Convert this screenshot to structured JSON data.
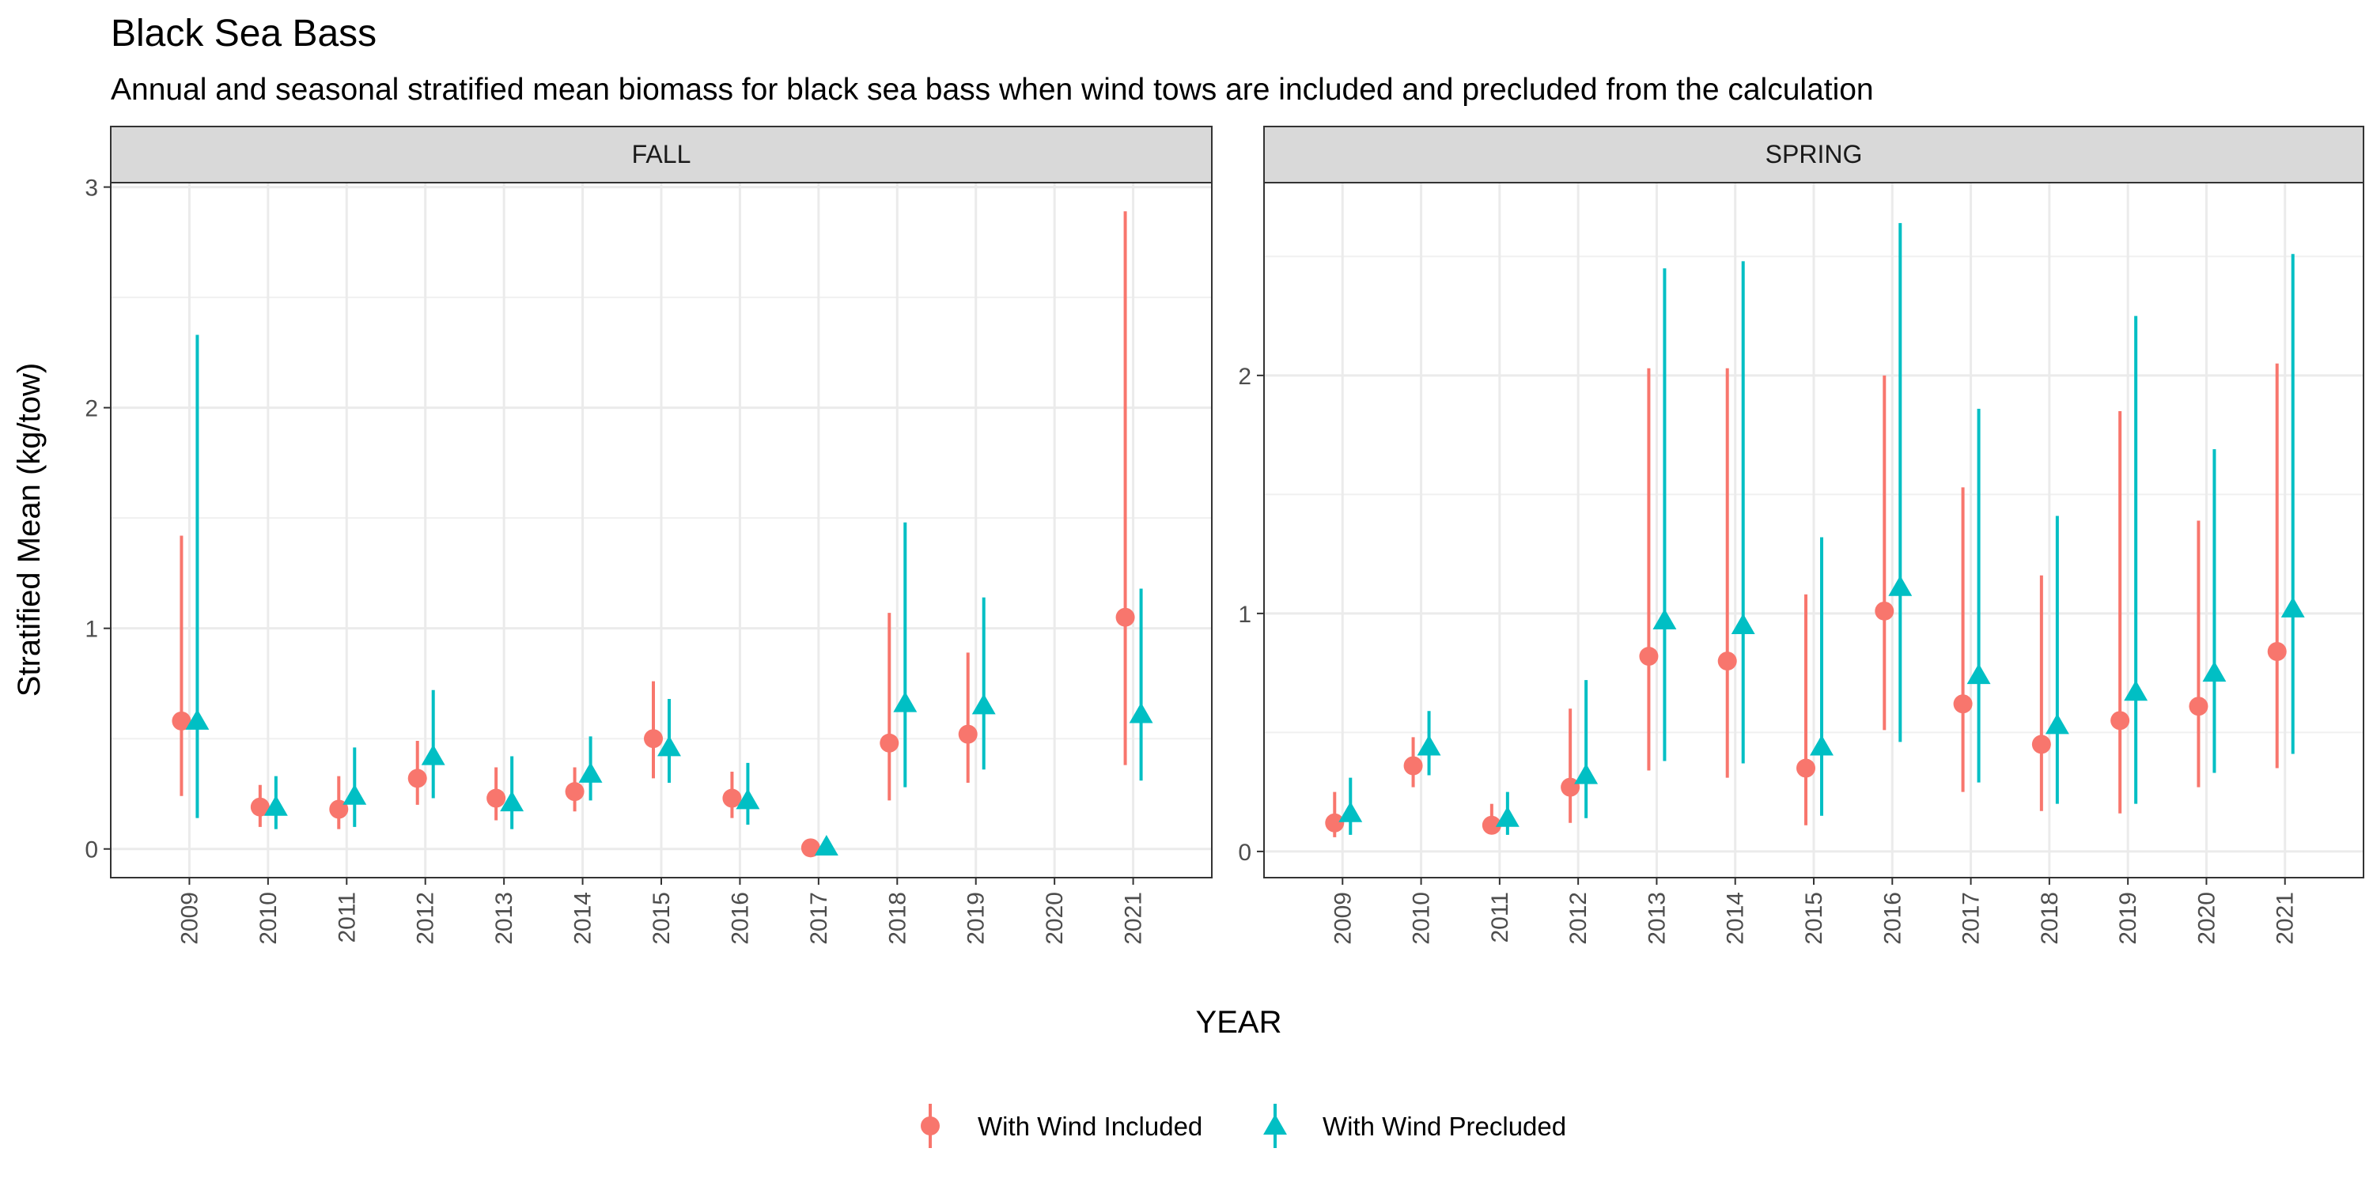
{
  "chart_data": {
    "type": "scatter",
    "title": "Black Sea Bass",
    "subtitle": "Annual and seasonal stratified mean biomass for black sea bass when wind tows are included and precluded from the calculation",
    "xlabel": "YEAR",
    "ylabel": "Stratified Mean (kg/tow)",
    "categories": [
      "2009",
      "2010",
      "2011",
      "2012",
      "2013",
      "2014",
      "2015",
      "2016",
      "2017",
      "2018",
      "2019",
      "2020",
      "2021"
    ],
    "legend": {
      "position": "bottom",
      "entries": [
        {
          "name": "With Wind Included",
          "color": "#F8766D",
          "shape": "circle"
        },
        {
          "name": "With Wind Precluded",
          "color": "#00BFC4",
          "shape": "triangle"
        }
      ]
    },
    "grid": true,
    "panels": [
      {
        "label": "FALL",
        "ylim": [
          -0.13,
          3.02
        ],
        "yticks": [
          0,
          1,
          2,
          3
        ],
        "series": [
          {
            "name": "With Wind Included",
            "mean": [
              0.58,
              0.19,
              0.18,
              0.32,
              0.23,
              0.26,
              0.5,
              0.23,
              0.005,
              0.48,
              0.52,
              null,
              1.05
            ],
            "lower": [
              0.24,
              0.1,
              0.09,
              0.2,
              0.13,
              0.17,
              0.32,
              0.14,
              0.0,
              0.22,
              0.3,
              null,
              0.38
            ],
            "upper": [
              1.42,
              0.29,
              0.33,
              0.49,
              0.37,
              0.37,
              0.76,
              0.35,
              0.01,
              1.07,
              0.89,
              null,
              2.89
            ]
          },
          {
            "name": "With Wind Precluded",
            "mean": [
              0.58,
              0.19,
              0.24,
              0.42,
              0.21,
              0.34,
              0.46,
              0.22,
              0.01,
              0.66,
              0.65,
              null,
              0.61
            ],
            "lower": [
              0.14,
              0.09,
              0.1,
              0.23,
              0.09,
              0.22,
              0.3,
              0.11,
              0.0,
              0.28,
              0.36,
              null,
              0.31
            ],
            "upper": [
              2.33,
              0.33,
              0.46,
              0.72,
              0.42,
              0.51,
              0.68,
              0.39,
              0.02,
              1.48,
              1.14,
              null,
              1.18
            ]
          }
        ]
      },
      {
        "label": "SPRING",
        "ylim": [
          -0.11,
          2.81
        ],
        "yticks": [
          0,
          1,
          2
        ],
        "series": [
          {
            "name": "With Wind Included",
            "mean": [
              0.12,
              0.36,
              0.11,
              0.27,
              0.82,
              0.8,
              0.35,
              1.01,
              0.62,
              0.45,
              0.55,
              0.61,
              0.84
            ],
            "lower": [
              0.06,
              0.27,
              0.08,
              0.12,
              0.34,
              0.31,
              0.11,
              0.51,
              0.25,
              0.17,
              0.16,
              0.27,
              0.35
            ],
            "upper": [
              0.25,
              0.48,
              0.2,
              0.6,
              2.03,
              2.03,
              1.08,
              2.0,
              1.53,
              1.16,
              1.85,
              1.39,
              2.05
            ]
          },
          {
            "name": "With Wind Precluded",
            "mean": [
              0.16,
              0.44,
              0.14,
              0.32,
              0.97,
              0.95,
              0.44,
              1.11,
              0.74,
              0.53,
              0.67,
              0.75,
              1.02
            ],
            "lower": [
              0.07,
              0.32,
              0.07,
              0.14,
              0.38,
              0.37,
              0.15,
              0.46,
              0.29,
              0.2,
              0.2,
              0.33,
              0.41
            ],
            "upper": [
              0.31,
              0.59,
              0.25,
              0.72,
              2.45,
              2.48,
              1.32,
              2.64,
              1.86,
              1.41,
              2.25,
              1.69,
              2.51
            ]
          }
        ]
      }
    ]
  }
}
